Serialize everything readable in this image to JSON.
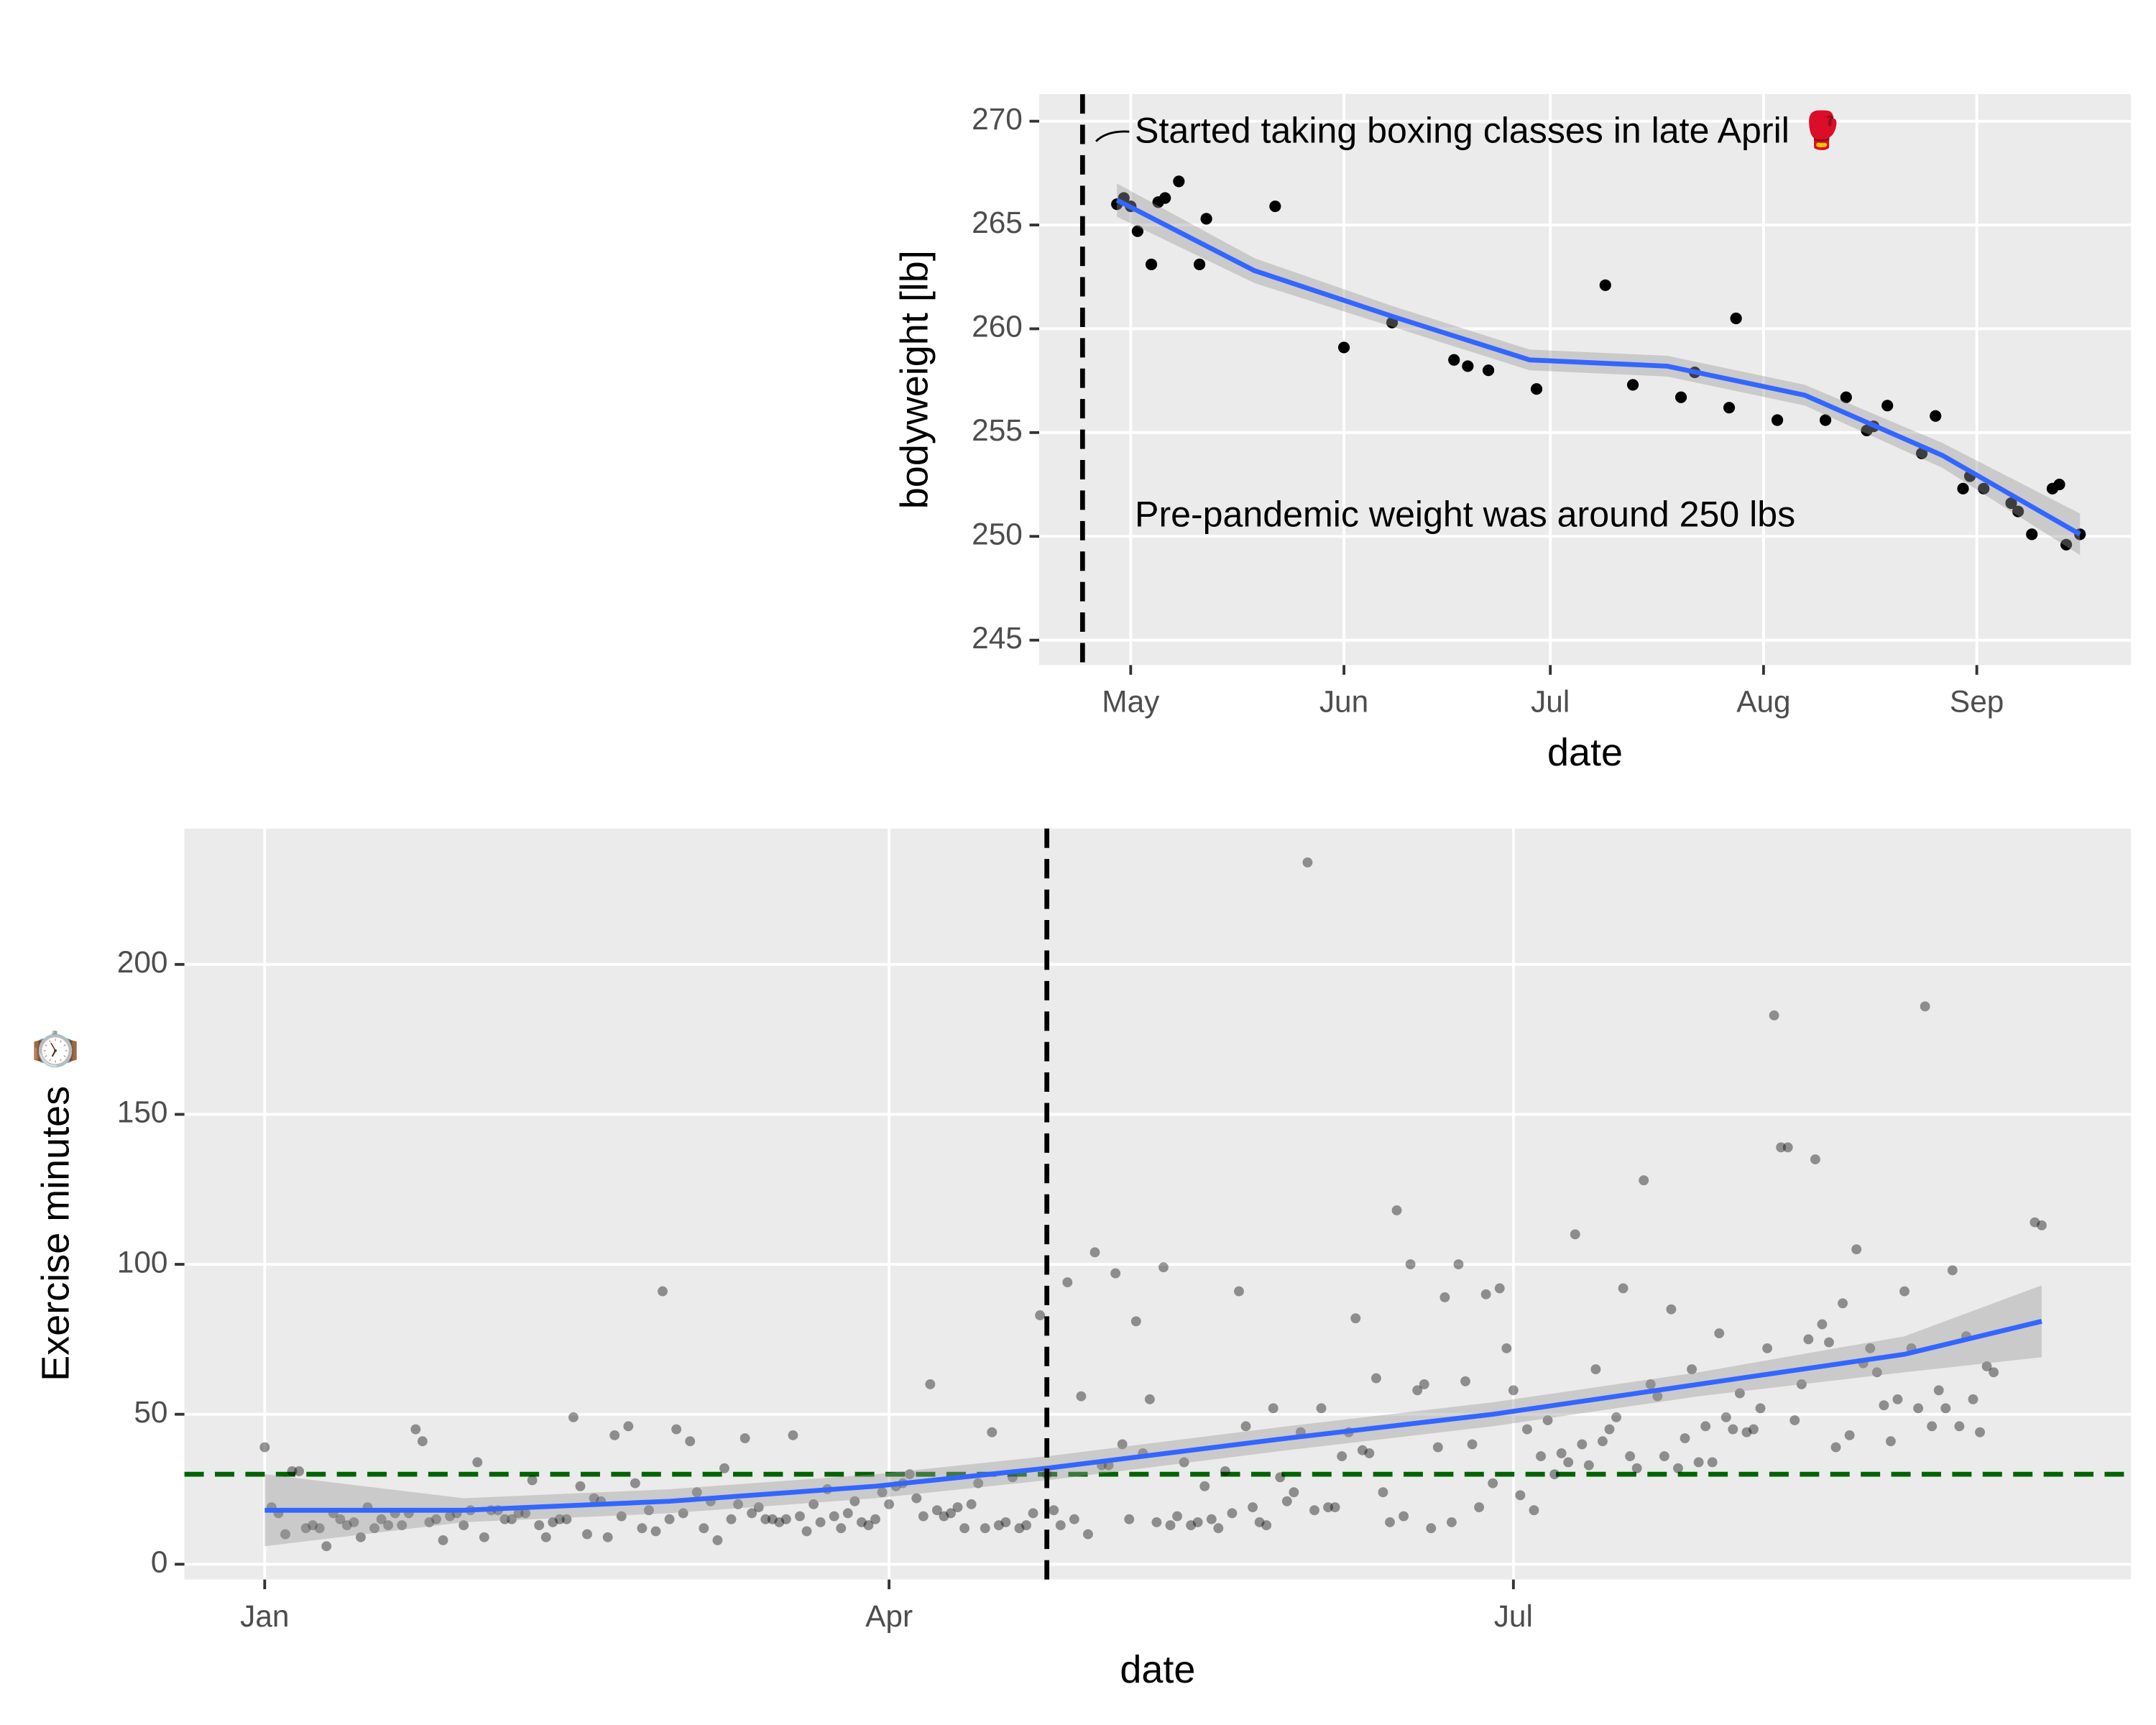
{
  "chart_data": [
    {
      "type": "scatter",
      "x_label": "date",
      "y_label": "bodyweight [lb]",
      "xlim": [
        108.7,
        267.4
      ],
      "ylim": [
        243.8,
        271.3
      ],
      "xticks": [
        {
          "value": 122,
          "label": "May"
        },
        {
          "value": 153,
          "label": "Jun"
        },
        {
          "value": 183,
          "label": "Jul"
        },
        {
          "value": 214,
          "label": "Aug"
        },
        {
          "value": 245,
          "label": "Sep"
        }
      ],
      "yticks": [
        245,
        250,
        255,
        260,
        265,
        270
      ],
      "grid": true,
      "series": [
        {
          "color": "#000000",
          "opacity": 1,
          "x": [
            120,
            121,
            122,
            123,
            125,
            126,
            127,
            129,
            132,
            133,
            143,
            153,
            160,
            169,
            171,
            174,
            181,
            191,
            195,
            202,
            204,
            209,
            210,
            216,
            223,
            226,
            229,
            230,
            232,
            237,
            239,
            243,
            244,
            246,
            250,
            251,
            253,
            256,
            257,
            258,
            260
          ],
          "values": [
            266,
            266.3,
            265.9,
            264.7,
            263.1,
            266.1,
            266.3,
            267.1,
            263.1,
            265.3,
            265.9,
            259.1,
            260.3,
            258.5,
            258.2,
            258,
            257.1,
            262.1,
            257.3,
            256.7,
            257.9,
            256.2,
            260.5,
            255.6,
            255.6,
            256.7,
            255.1,
            255.3,
            256.3,
            254,
            255.8,
            252.3,
            252.9,
            252.3,
            251.6,
            251.2,
            250.1,
            252.3,
            252.5,
            249.6,
            250.1
          ]
        }
      ],
      "smooth": {
        "color": "#3366FF",
        "x": [
          120,
          140,
          160,
          180,
          200,
          220,
          240,
          260
        ],
        "values": [
          266.2,
          262.8,
          260.6,
          258.5,
          258.2,
          256.8,
          253.9,
          250.1
        ],
        "lower": [
          265.4,
          262.2,
          260.1,
          258,
          257.7,
          256.3,
          253.3,
          249.1
        ],
        "upper": [
          267,
          263.4,
          261.1,
          259,
          258.7,
          257.3,
          254.5,
          251.1
        ]
      },
      "vline": 115,
      "annotations": [
        "Started taking boxing classes in late April 🥊",
        "Pre-pandemic weight was around 250 lbs"
      ]
    },
    {
      "type": "scatter",
      "x_label": "date",
      "y_label": "Exercise minutes ⌚",
      "xlim": [
        -10.7,
        273
      ],
      "ylim": [
        -5.1,
        245.3
      ],
      "xticks": [
        {
          "value": 1,
          "label": "Jan"
        },
        {
          "value": 92,
          "label": "Apr"
        },
        {
          "value": 183,
          "label": "Jul"
        }
      ],
      "yticks": [
        0,
        50,
        100,
        150,
        200
      ],
      "grid": true,
      "series": [
        {
          "color": "#000000",
          "opacity": 0.4,
          "x": [
            1,
            2,
            3,
            4,
            5,
            6,
            7,
            8,
            9,
            10,
            11,
            12,
            13,
            14,
            15,
            16,
            17,
            18,
            19,
            20,
            21,
            22,
            23,
            24,
            25,
            26,
            27,
            28,
            29,
            30,
            31,
            32,
            33,
            34,
            35,
            36,
            37,
            38,
            39,
            40,
            41,
            42,
            43,
            44,
            45,
            46,
            47,
            48,
            49,
            50,
            51,
            52,
            53,
            54,
            55,
            56,
            57,
            58,
            59,
            60,
            61,
            62,
            63,
            64,
            65,
            66,
            67,
            68,
            69,
            70,
            71,
            72,
            73,
            74,
            75,
            76,
            77,
            78,
            79,
            80,
            81,
            82,
            83,
            84,
            85,
            86,
            87,
            88,
            89,
            90,
            91,
            92,
            93,
            94,
            95,
            96,
            97,
            98,
            99,
            100,
            101,
            102,
            103,
            104,
            105,
            106,
            107,
            108,
            109,
            110,
            111,
            112,
            113,
            114,
            115,
            116,
            117,
            118,
            119,
            120,
            121,
            122,
            123,
            124,
            125,
            126,
            127,
            128,
            129,
            130,
            131,
            132,
            133,
            134,
            135,
            136,
            137,
            138,
            139,
            140,
            141,
            142,
            143,
            144,
            145,
            146,
            147,
            148,
            149,
            150,
            151,
            152,
            153,
            154,
            155,
            156,
            157,
            158,
            159,
            160,
            161,
            162,
            163,
            164,
            165,
            166,
            167,
            168,
            169,
            170,
            171,
            172,
            173,
            174,
            175,
            176,
            177,
            178,
            179,
            180,
            181,
            182,
            183,
            184,
            185,
            186,
            187,
            188,
            189,
            190,
            191,
            192,
            193,
            194,
            195,
            196,
            197,
            198,
            199,
            200,
            201,
            202,
            203,
            204,
            205,
            206,
            207,
            208,
            209,
            210,
            211,
            212,
            213,
            214,
            215,
            216,
            217,
            218,
            219,
            220,
            221,
            222,
            223,
            224,
            225,
            226,
            227,
            228,
            229,
            230,
            231,
            232,
            233,
            234,
            235,
            236,
            237,
            238,
            239,
            240,
            241,
            242,
            243,
            244,
            245,
            246,
            247,
            248,
            249,
            250,
            251,
            252,
            253,
            259,
            260
          ],
          "values": [
            39,
            19,
            17,
            10,
            31,
            31,
            12,
            13,
            12,
            6,
            17,
            15,
            13,
            14,
            9,
            19,
            12,
            15,
            13,
            17,
            13,
            17,
            45,
            41,
            14,
            15,
            8,
            16,
            17,
            13,
            18,
            34,
            9,
            18,
            18,
            15,
            15,
            17,
            17,
            28,
            13,
            9,
            14,
            15,
            15,
            49,
            26,
            10,
            22,
            21,
            9,
            43,
            16,
            46,
            27,
            12,
            18,
            11,
            91,
            15,
            45,
            17,
            41,
            24,
            12,
            21,
            8,
            32,
            15,
            20,
            42,
            17,
            19,
            15,
            15,
            14,
            15,
            43,
            16,
            11,
            20,
            14,
            25,
            16,
            12,
            17,
            21,
            14,
            13,
            15,
            24,
            20,
            26,
            27,
            30,
            22,
            16,
            60,
            18,
            16,
            17,
            19,
            12,
            20,
            27,
            12,
            44,
            13,
            14,
            29,
            12,
            13,
            17,
            83,
            30,
            18,
            13,
            94,
            15,
            56,
            10,
            104,
            33,
            33,
            97,
            40,
            15,
            81,
            37,
            55,
            14,
            99,
            13,
            16,
            34,
            13,
            14,
            26,
            15,
            12,
            31,
            17,
            91,
            46,
            19,
            14,
            13,
            52,
            29,
            21,
            24,
            44,
            234,
            18,
            52,
            19,
            19,
            36,
            44,
            82,
            38,
            37,
            62,
            24,
            14,
            118,
            16,
            100,
            58,
            60,
            12,
            39,
            89,
            14,
            100,
            61,
            40,
            19,
            90,
            27,
            92,
            72,
            58,
            23,
            45,
            18,
            36,
            48,
            30,
            37,
            34,
            110,
            40,
            33,
            65,
            41,
            45,
            49,
            92,
            36,
            32,
            128,
            60,
            56,
            36,
            85,
            32,
            42,
            65,
            34,
            46,
            34,
            77,
            49,
            45,
            57,
            44,
            45,
            52,
            72,
            183,
            139,
            139,
            48,
            60,
            75,
            135,
            80,
            74,
            39,
            87,
            43,
            105,
            67,
            72,
            64,
            53,
            41,
            55,
            91,
            72,
            52,
            186,
            46,
            58,
            52,
            98,
            46,
            76,
            55,
            44,
            66,
            64,
            114,
            113
          ]
        }
      ],
      "smooth": {
        "color": "#3366FF",
        "x": [
          1,
          30,
          60,
          90,
          115,
          150,
          180,
          210,
          240,
          260
        ],
        "values": [
          18,
          18,
          21,
          26,
          32,
          42,
          50,
          60,
          70,
          81
        ],
        "lower": [
          6,
          14,
          17,
          22,
          28,
          38,
          46,
          56,
          64,
          69
        ],
        "upper": [
          30,
          22,
          25,
          30,
          36,
          46,
          54,
          64,
          76,
          93
        ]
      },
      "vline": 115,
      "hline": 30,
      "hline_color": "#006400"
    }
  ]
}
